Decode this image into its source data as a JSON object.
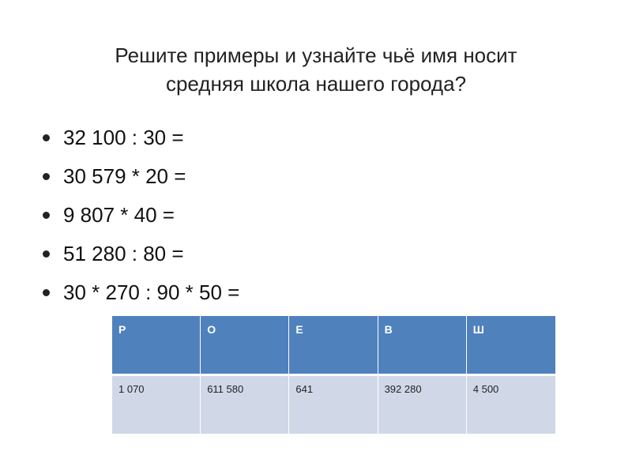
{
  "title": {
    "line1": "Решите примеры и узнайте  чьё имя носит",
    "line2": "средняя школа  нашего города?"
  },
  "tasks": [
    "32 100 : 30 =",
    "30 579 * 20 =",
    "9 807 * 40 =",
    "51 280 : 80 =",
    "30 * 270 : 90 * 50 ="
  ],
  "table": {
    "letters": [
      "Р",
      "О",
      "Е",
      "В",
      "Ш"
    ],
    "values": [
      "1 070",
      "611 580",
      "641",
      "392 280",
      "4 500"
    ]
  },
  "colors": {
    "header_bg": "#4f81bd",
    "cell_bg": "#d0d8e8"
  }
}
